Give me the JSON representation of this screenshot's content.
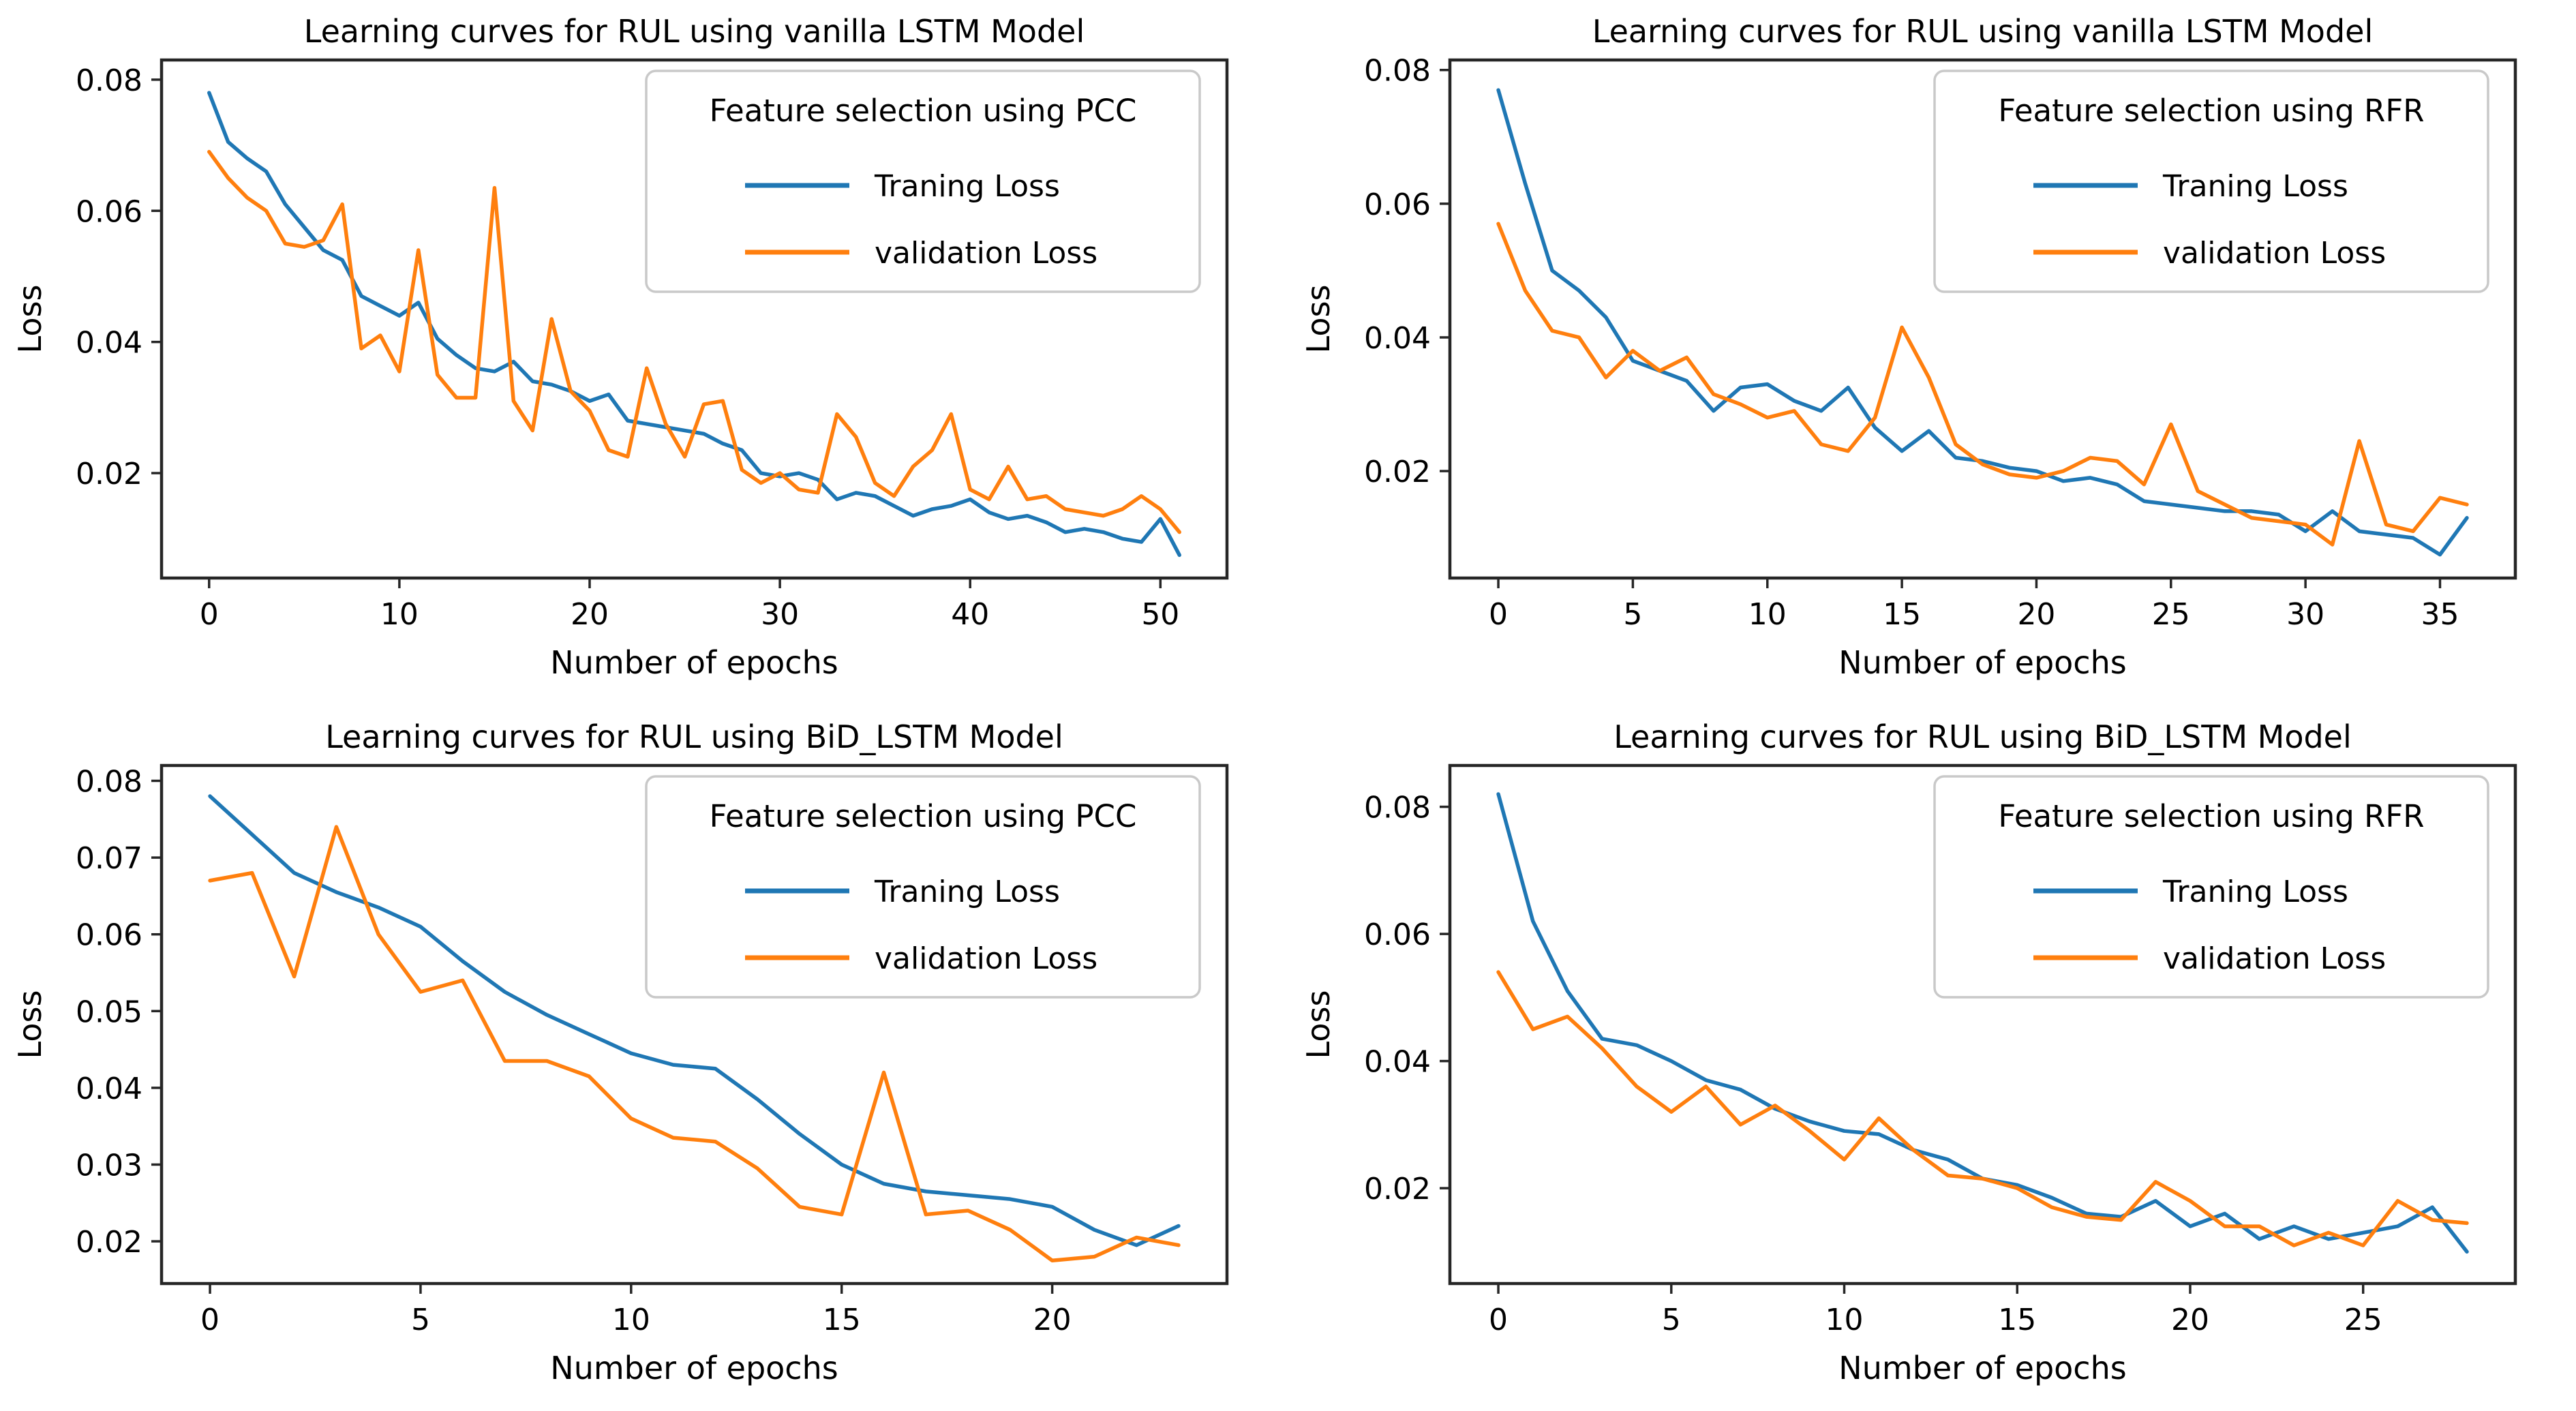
{
  "figure": {
    "background": "#ffffff",
    "rows": 2,
    "cols": 2
  },
  "colors": {
    "training": "#1f77b4",
    "validation": "#ff7f0e",
    "axes": "#262626",
    "text": "#000000",
    "legend_border": "#c9c9c9",
    "legend_fill": "#ffffff"
  },
  "chart_data": [
    {
      "id": "vanilla-lstm-pcc",
      "type": "line",
      "title": "Learning curves for RUL using vanilla LSTM Model",
      "xlabel": "Number of epochs",
      "ylabel": "Loss",
      "grid": false,
      "legend": {
        "title": "Feature selection using PCC",
        "position": "upper right"
      },
      "xlim": [
        -2.5,
        53.5
      ],
      "ylim": [
        0.004,
        0.083
      ],
      "xticks": [
        0,
        10,
        20,
        30,
        40,
        50
      ],
      "yticks": [
        0.02,
        0.04,
        0.06,
        0.08
      ],
      "x_step": 1,
      "series": [
        {
          "name": "Traning Loss",
          "color_key": "training",
          "values": [
            0.078,
            0.0705,
            0.068,
            0.066,
            0.061,
            0.0575,
            0.054,
            0.0525,
            0.047,
            0.0455,
            0.044,
            0.046,
            0.0405,
            0.038,
            0.036,
            0.0355,
            0.037,
            0.034,
            0.0335,
            0.0325,
            0.031,
            0.032,
            0.028,
            0.0275,
            0.027,
            0.0265,
            0.026,
            0.0245,
            0.0235,
            0.02,
            0.0195,
            0.02,
            0.019,
            0.016,
            0.017,
            0.0165,
            0.015,
            0.0135,
            0.0145,
            0.015,
            0.016,
            0.014,
            0.013,
            0.0135,
            0.0125,
            0.011,
            0.0115,
            0.011,
            0.01,
            0.0095,
            0.013,
            0.0075
          ]
        },
        {
          "name": "validation Loss",
          "color_key": "validation",
          "values": [
            0.069,
            0.065,
            0.062,
            0.06,
            0.055,
            0.0545,
            0.0555,
            0.061,
            0.039,
            0.041,
            0.0355,
            0.054,
            0.035,
            0.0315,
            0.0315,
            0.0635,
            0.031,
            0.0265,
            0.0435,
            0.0325,
            0.0295,
            0.0235,
            0.0225,
            0.036,
            0.0275,
            0.0225,
            0.0305,
            0.031,
            0.0205,
            0.0185,
            0.02,
            0.0175,
            0.017,
            0.029,
            0.0255,
            0.0185,
            0.0165,
            0.021,
            0.0235,
            0.029,
            0.0175,
            0.016,
            0.021,
            0.016,
            0.0165,
            0.0145,
            0.014,
            0.0135,
            0.0145,
            0.0165,
            0.0145,
            0.011
          ]
        }
      ]
    },
    {
      "id": "vanilla-lstm-rfr",
      "type": "line",
      "title": "Learning curves for RUL using vanilla LSTM Model",
      "xlabel": "Number of epochs",
      "ylabel": "Loss",
      "grid": false,
      "legend": {
        "title": "Feature selection using RFR",
        "position": "upper right"
      },
      "xlim": [
        -1.8,
        37.8
      ],
      "ylim": [
        0.004,
        0.0815
      ],
      "xticks": [
        0,
        5,
        10,
        15,
        20,
        25,
        30,
        35
      ],
      "yticks": [
        0.02,
        0.04,
        0.06,
        0.08
      ],
      "x_step": 1,
      "series": [
        {
          "name": "Traning Loss",
          "color_key": "training",
          "values": [
            0.077,
            0.063,
            0.05,
            0.047,
            0.043,
            0.0365,
            0.035,
            0.0335,
            0.029,
            0.0325,
            0.033,
            0.0305,
            0.029,
            0.0325,
            0.0265,
            0.023,
            0.026,
            0.022,
            0.0215,
            0.0205,
            0.02,
            0.0185,
            0.019,
            0.018,
            0.0155,
            0.015,
            0.0145,
            0.014,
            0.014,
            0.0135,
            0.011,
            0.014,
            0.011,
            0.0105,
            0.01,
            0.0075,
            0.013
          ]
        },
        {
          "name": "validation Loss",
          "color_key": "validation",
          "values": [
            0.057,
            0.047,
            0.041,
            0.04,
            0.034,
            0.038,
            0.035,
            0.037,
            0.0315,
            0.03,
            0.028,
            0.029,
            0.024,
            0.023,
            0.028,
            0.0415,
            0.034,
            0.024,
            0.021,
            0.0195,
            0.019,
            0.02,
            0.022,
            0.0215,
            0.018,
            0.027,
            0.017,
            0.015,
            0.013,
            0.0125,
            0.012,
            0.009,
            0.0245,
            0.012,
            0.011,
            0.016,
            0.015
          ]
        }
      ]
    },
    {
      "id": "bid-lstm-pcc",
      "type": "line",
      "title": "Learning curves for RUL using BiD_LSTM Model",
      "xlabel": "Number of epochs",
      "ylabel": "Loss",
      "grid": false,
      "legend": {
        "title": "Feature selection using PCC",
        "position": "upper right"
      },
      "xlim": [
        -1.15,
        24.15
      ],
      "ylim": [
        0.0145,
        0.082
      ],
      "xticks": [
        0,
        5,
        10,
        15,
        20
      ],
      "yticks": [
        0.02,
        0.03,
        0.04,
        0.05,
        0.06,
        0.07,
        0.08
      ],
      "x_step": 1,
      "series": [
        {
          "name": "Traning Loss",
          "color_key": "training",
          "values": [
            0.078,
            0.073,
            0.068,
            0.0655,
            0.0635,
            0.061,
            0.0565,
            0.0525,
            0.0495,
            0.047,
            0.0445,
            0.043,
            0.0425,
            0.0385,
            0.034,
            0.03,
            0.0275,
            0.0265,
            0.026,
            0.0255,
            0.0245,
            0.0215,
            0.0195,
            0.022
          ]
        },
        {
          "name": "validation Loss",
          "color_key": "validation",
          "values": [
            0.067,
            0.068,
            0.0545,
            0.074,
            0.06,
            0.0525,
            0.054,
            0.0435,
            0.0435,
            0.0415,
            0.036,
            0.0335,
            0.033,
            0.0295,
            0.0245,
            0.0235,
            0.042,
            0.0235,
            0.024,
            0.0215,
            0.0175,
            0.018,
            0.0205,
            0.0195
          ]
        }
      ]
    },
    {
      "id": "bid-lstm-rfr",
      "type": "line",
      "title": "Learning curves for RUL using BiD_LSTM Model",
      "xlabel": "Number of epochs",
      "ylabel": "Loss",
      "grid": false,
      "legend": {
        "title": "Feature selection using RFR",
        "position": "upper right"
      },
      "xlim": [
        -1.4,
        29.4
      ],
      "ylim": [
        0.005,
        0.0865
      ],
      "xticks": [
        0,
        5,
        10,
        15,
        20,
        25
      ],
      "yticks": [
        0.02,
        0.04,
        0.06,
        0.08
      ],
      "x_step": 1,
      "series": [
        {
          "name": "Traning Loss",
          "color_key": "training",
          "values": [
            0.082,
            0.062,
            0.051,
            0.0435,
            0.0425,
            0.04,
            0.037,
            0.0355,
            0.0325,
            0.0305,
            0.029,
            0.0285,
            0.026,
            0.0245,
            0.0215,
            0.0205,
            0.0185,
            0.016,
            0.0155,
            0.018,
            0.014,
            0.016,
            0.012,
            0.014,
            0.012,
            0.013,
            0.014,
            0.017,
            0.01
          ]
        },
        {
          "name": "validation Loss",
          "color_key": "validation",
          "values": [
            0.054,
            0.045,
            0.047,
            0.042,
            0.036,
            0.032,
            0.036,
            0.03,
            0.033,
            0.029,
            0.0245,
            0.031,
            0.026,
            0.022,
            0.0215,
            0.02,
            0.017,
            0.0155,
            0.015,
            0.021,
            0.018,
            0.014,
            0.014,
            0.011,
            0.013,
            0.011,
            0.018,
            0.015,
            0.0145
          ]
        }
      ]
    }
  ]
}
